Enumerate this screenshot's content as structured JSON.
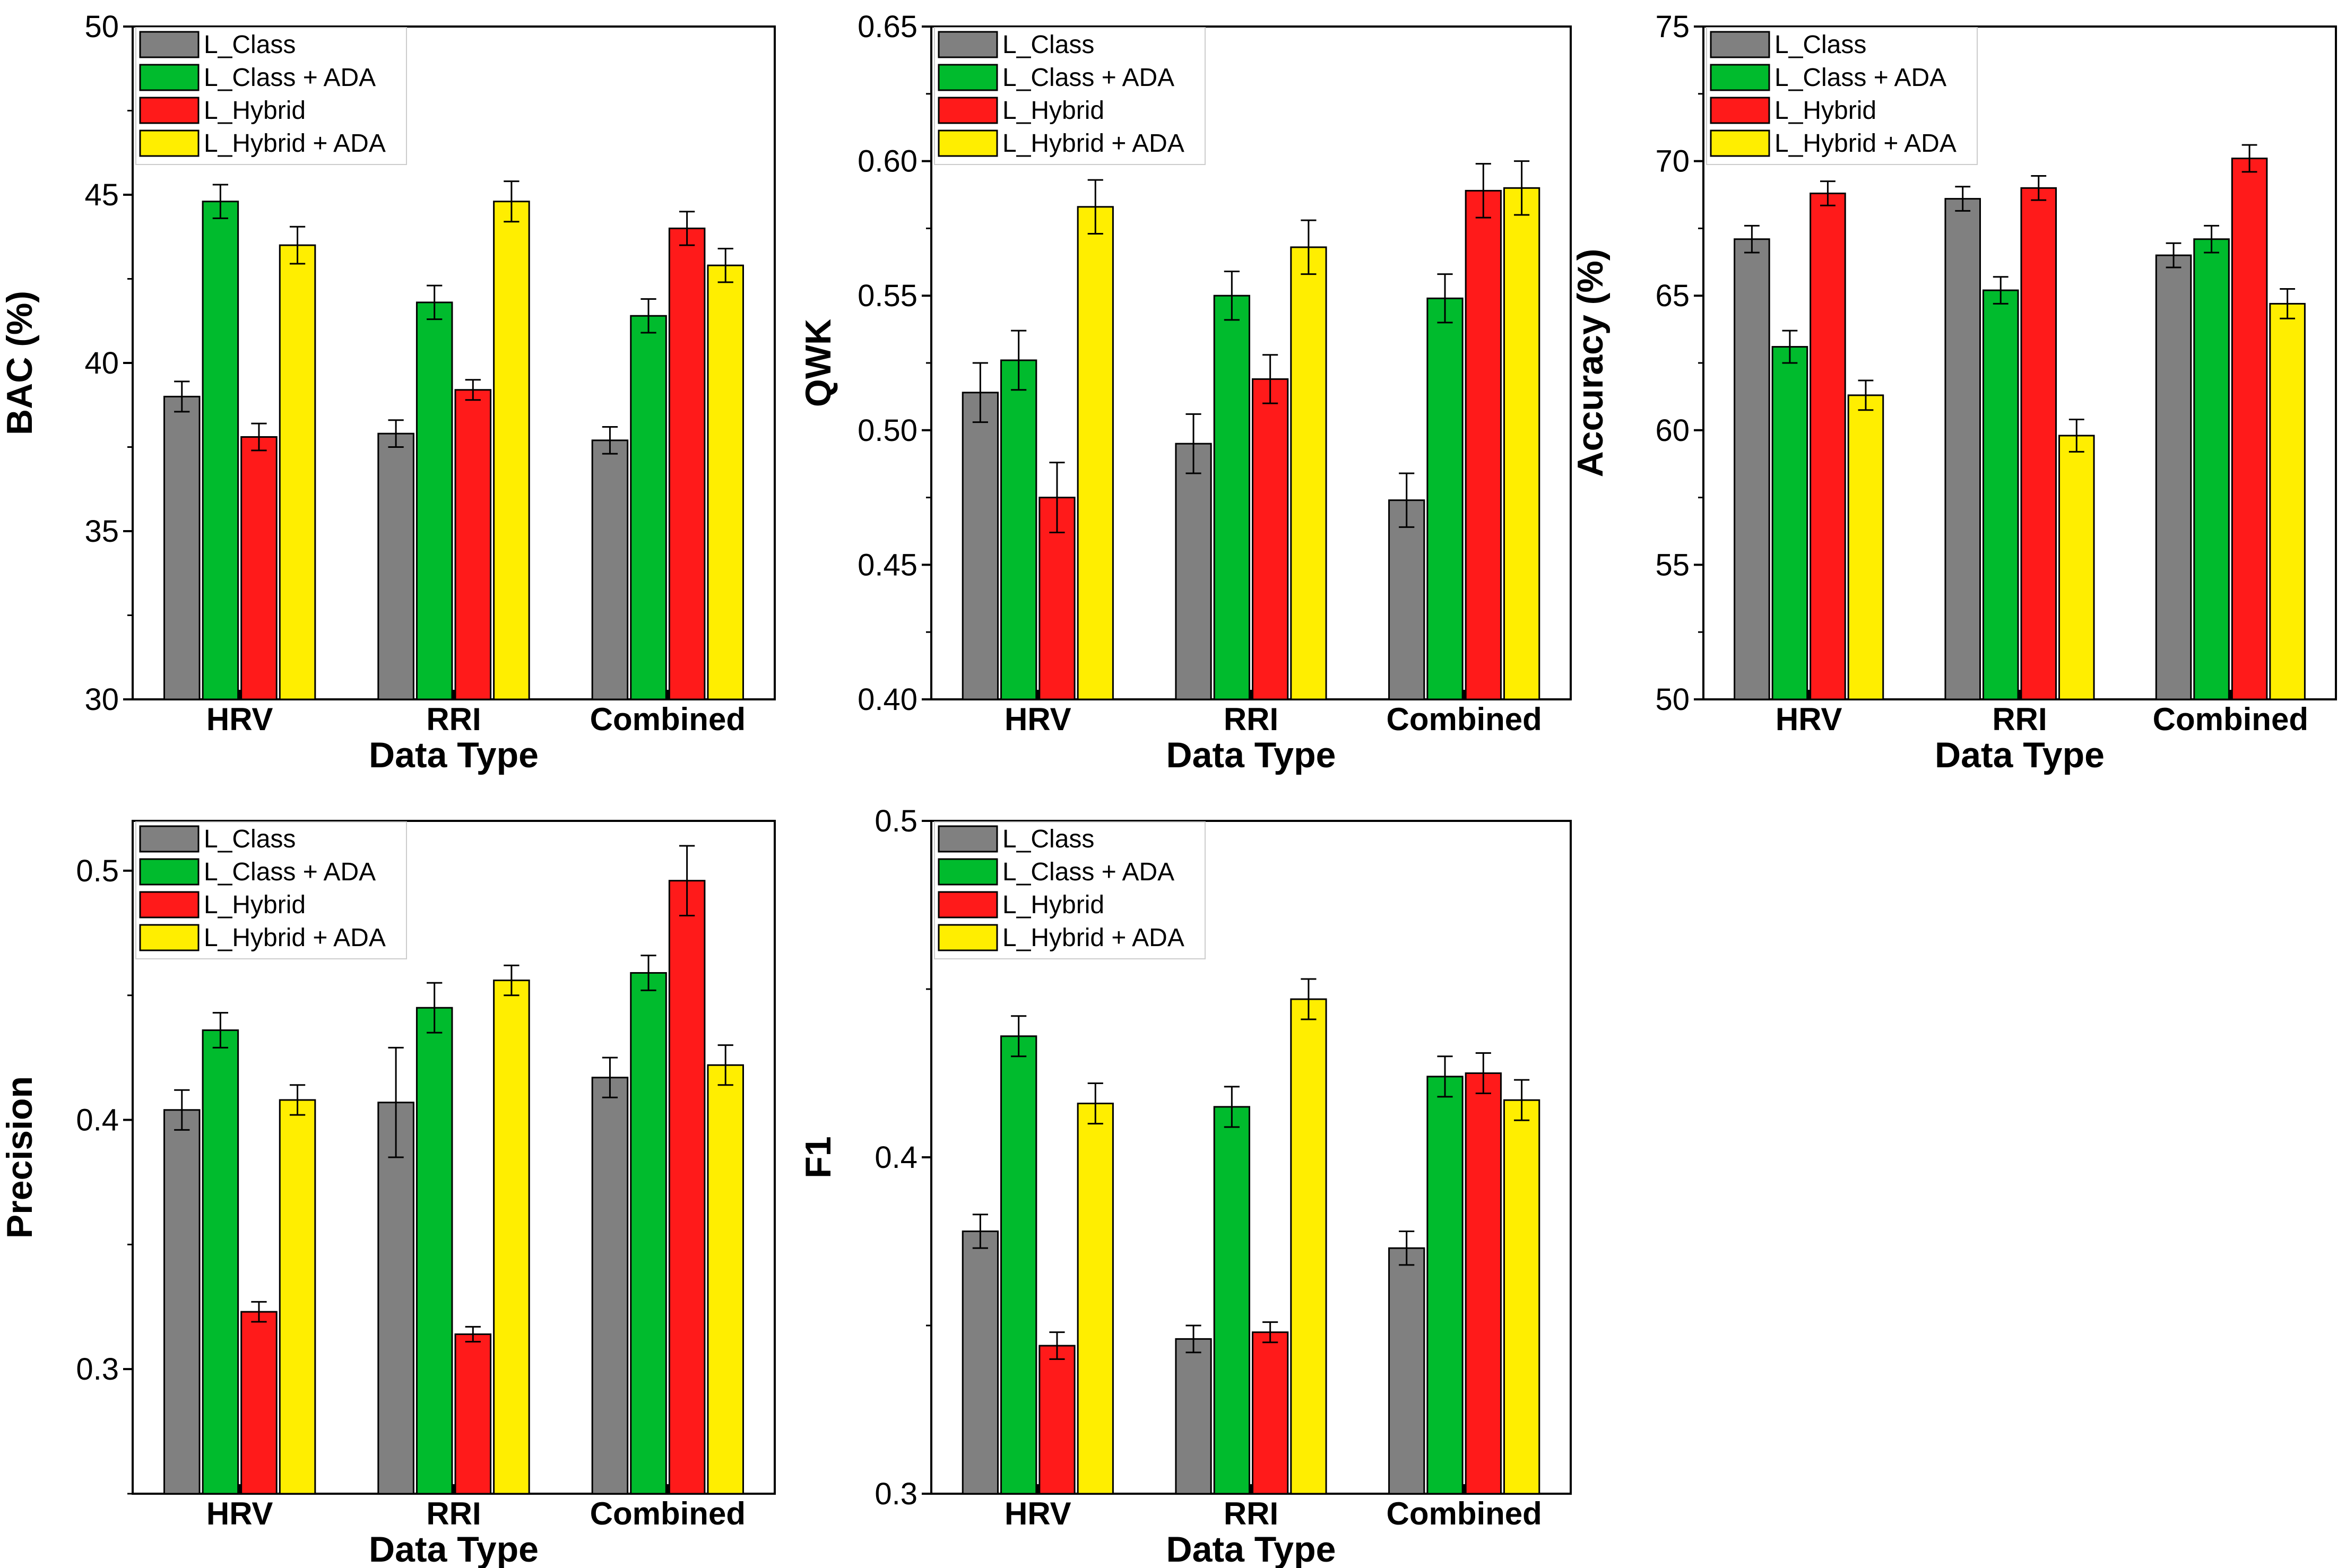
{
  "series_colors": {
    "L_Class": "#808080",
    "L_Class + ADA": "#00bb2d",
    "L_Hybrid": "#ff1a1a",
    "L_Hybrid + ADA": "#ffee00"
  },
  "chart_data": [
    {
      "type": "bar",
      "id": "bac",
      "categories": [
        "HRV",
        "RRI",
        "Combined"
      ],
      "xlabel": "Data Type",
      "ylabel": "BAC (%)",
      "ylim": [
        30,
        50
      ],
      "yticks": [
        30,
        35,
        40,
        45,
        50
      ],
      "ytick_labels": [
        "30",
        "35",
        "40",
        "45",
        "50"
      ],
      "minor_step": 2.5,
      "legend_position": "top-left",
      "series": [
        {
          "name": "L_Class",
          "values": [
            39.0,
            37.9,
            37.7
          ],
          "errors": [
            0.45,
            0.4,
            0.4
          ]
        },
        {
          "name": "L_Class + ADA",
          "values": [
            44.8,
            41.8,
            41.4
          ],
          "errors": [
            0.5,
            0.5,
            0.5
          ]
        },
        {
          "name": "L_Hybrid",
          "values": [
            37.8,
            39.2,
            44.0
          ],
          "errors": [
            0.4,
            0.3,
            0.5
          ]
        },
        {
          "name": "L_Hybrid + ADA",
          "values": [
            43.5,
            44.8,
            42.9
          ],
          "errors": [
            0.55,
            0.6,
            0.5
          ]
        }
      ]
    },
    {
      "type": "bar",
      "id": "qwk",
      "categories": [
        "HRV",
        "RRI",
        "Combined"
      ],
      "xlabel": "Data Type",
      "ylabel": "QWK",
      "ylim": [
        0.4,
        0.65
      ],
      "yticks": [
        0.4,
        0.45,
        0.5,
        0.55,
        0.6,
        0.65
      ],
      "ytick_labels": [
        "0.40",
        "0.45",
        "0.50",
        "0.55",
        "0.60",
        "0.65"
      ],
      "minor_step": 0.025,
      "legend_position": "top-left",
      "series": [
        {
          "name": "L_Class",
          "values": [
            0.514,
            0.495,
            0.474
          ],
          "errors": [
            0.011,
            0.011,
            0.01
          ]
        },
        {
          "name": "L_Class + ADA",
          "values": [
            0.526,
            0.55,
            0.549
          ],
          "errors": [
            0.011,
            0.009,
            0.009
          ]
        },
        {
          "name": "L_Hybrid",
          "values": [
            0.475,
            0.519,
            0.589
          ],
          "errors": [
            0.013,
            0.009,
            0.01
          ]
        },
        {
          "name": "L_Hybrid + ADA",
          "values": [
            0.583,
            0.568,
            0.59
          ],
          "errors": [
            0.01,
            0.01,
            0.01
          ]
        }
      ]
    },
    {
      "type": "bar",
      "id": "accuracy",
      "categories": [
        "HRV",
        "RRI",
        "Combined"
      ],
      "xlabel": "Data Type",
      "ylabel": "Accuracy (%)",
      "ylim": [
        50,
        75
      ],
      "yticks": [
        50,
        55,
        60,
        65,
        70,
        75
      ],
      "ytick_labels": [
        "50",
        "55",
        "60",
        "65",
        "70",
        "75"
      ],
      "minor_step": 2.5,
      "legend_position": "top-left",
      "series": [
        {
          "name": "L_Class",
          "values": [
            67.1,
            68.6,
            66.5
          ],
          "errors": [
            0.5,
            0.45,
            0.45
          ]
        },
        {
          "name": "L_Class + ADA",
          "values": [
            63.1,
            65.2,
            67.1
          ],
          "errors": [
            0.6,
            0.5,
            0.5
          ]
        },
        {
          "name": "L_Hybrid",
          "values": [
            68.8,
            69.0,
            70.1
          ],
          "errors": [
            0.45,
            0.45,
            0.5
          ]
        },
        {
          "name": "L_Hybrid + ADA",
          "values": [
            61.3,
            59.8,
            64.7
          ],
          "errors": [
            0.55,
            0.6,
            0.55
          ]
        }
      ]
    },
    {
      "type": "bar",
      "id": "precision",
      "categories": [
        "HRV",
        "RRI",
        "Combined"
      ],
      "xlabel": "Data Type",
      "ylabel": "Precision",
      "ylim": [
        0.25,
        0.52
      ],
      "yticks": [
        0.3,
        0.4,
        0.5
      ],
      "ytick_labels": [
        "0.3",
        "0.4",
        "0.5"
      ],
      "minor_step": 0.05,
      "legend_position": "top-left",
      "series": [
        {
          "name": "L_Class",
          "values": [
            0.404,
            0.407,
            0.417
          ],
          "errors": [
            0.008,
            0.022,
            0.008
          ]
        },
        {
          "name": "L_Class + ADA",
          "values": [
            0.436,
            0.445,
            0.459
          ],
          "errors": [
            0.007,
            0.01,
            0.007
          ]
        },
        {
          "name": "L_Hybrid",
          "values": [
            0.323,
            0.314,
            0.496
          ],
          "errors": [
            0.004,
            0.003,
            0.014
          ]
        },
        {
          "name": "L_Hybrid + ADA",
          "values": [
            0.408,
            0.456,
            0.422
          ],
          "errors": [
            0.006,
            0.006,
            0.008
          ]
        }
      ]
    },
    {
      "type": "bar",
      "id": "f1",
      "categories": [
        "HRV",
        "RRI",
        "Combined"
      ],
      "xlabel": "Data Type",
      "ylabel": "F1",
      "ylim": [
        0.3,
        0.5
      ],
      "yticks": [
        0.3,
        0.4,
        0.5
      ],
      "ytick_labels": [
        "0.3",
        "0.4",
        "0.5"
      ],
      "minor_step": 0.05,
      "legend_position": "top-left",
      "series": [
        {
          "name": "L_Class",
          "values": [
            0.378,
            0.346,
            0.373
          ],
          "errors": [
            0.005,
            0.004,
            0.005
          ]
        },
        {
          "name": "L_Class + ADA",
          "values": [
            0.436,
            0.415,
            0.424
          ],
          "errors": [
            0.006,
            0.006,
            0.006
          ]
        },
        {
          "name": "L_Hybrid",
          "values": [
            0.344,
            0.348,
            0.425
          ],
          "errors": [
            0.004,
            0.003,
            0.006
          ]
        },
        {
          "name": "L_Hybrid + ADA",
          "values": [
            0.416,
            0.447,
            0.417
          ],
          "errors": [
            0.006,
            0.006,
            0.006
          ]
        }
      ]
    }
  ]
}
